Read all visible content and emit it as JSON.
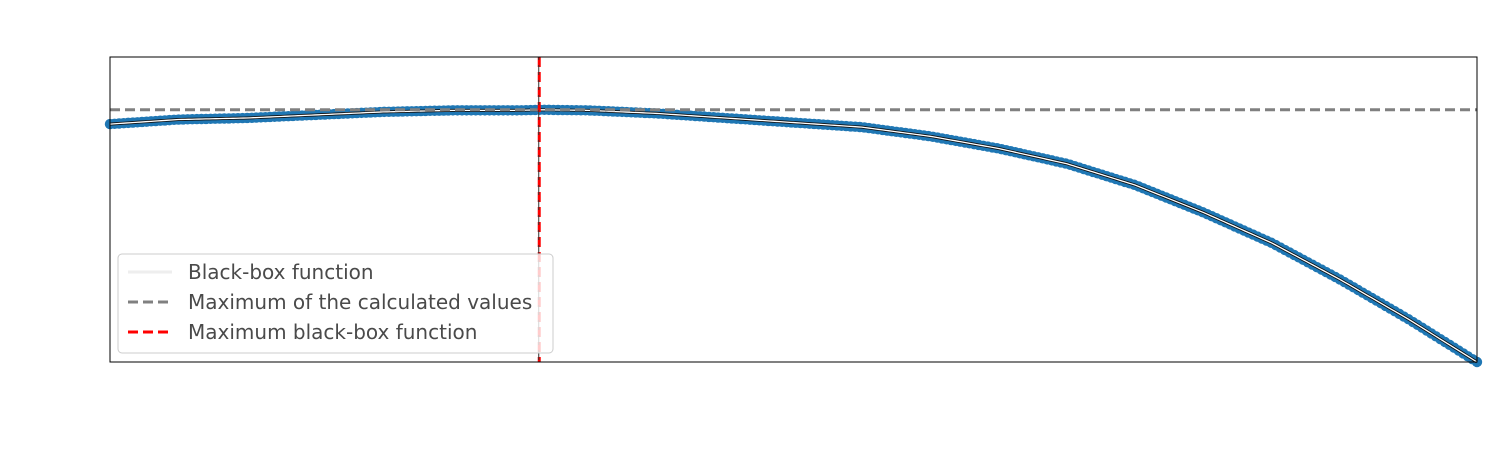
{
  "chart_data": {
    "type": "line",
    "title": "",
    "xlabel": "",
    "ylabel": "",
    "xlim": [
      0,
      1
    ],
    "ylim": [
      0,
      1
    ],
    "grid": false,
    "legend_placement": "lower-left",
    "series": [
      {
        "name": "Black-box function",
        "color": "#ffffff",
        "style": "solid",
        "x": [
          0.0,
          0.05,
          0.1,
          0.15,
          0.2,
          0.25,
          0.3,
          0.314,
          0.35,
          0.4,
          0.45,
          0.5,
          0.55,
          0.6,
          0.65,
          0.7,
          0.75,
          0.8,
          0.85,
          0.9,
          0.95,
          1.0
        ],
        "y": [
          0.78,
          0.795,
          0.8,
          0.81,
          0.82,
          0.825,
          0.825,
          0.827,
          0.825,
          0.815,
          0.8,
          0.785,
          0.77,
          0.74,
          0.7,
          0.65,
          0.58,
          0.49,
          0.39,
          0.27,
          0.14,
          0.0
        ]
      }
    ],
    "scatter_series": {
      "name": "",
      "color": "#1f77b4",
      "x_start": 0.0,
      "x_end": 1.0,
      "count": 300
    },
    "reference_lines": [
      {
        "name": "Maximum of the calculated values",
        "orientation": "horizontal",
        "value": 0.827,
        "color": "#808080",
        "style": "dashed"
      },
      {
        "name": "Maximum black-box function",
        "orientation": "vertical",
        "value": 0.314,
        "color": "#ff0000",
        "style": "dashed"
      }
    ],
    "legend": [
      {
        "label": "Black-box function",
        "color": "#ffffff",
        "style": "solid"
      },
      {
        "label": "Maximum of the calculated values",
        "color": "#808080",
        "style": "dashed"
      },
      {
        "label": "Maximum black-box function",
        "color": "#ff0000",
        "style": "dashed"
      }
    ]
  }
}
